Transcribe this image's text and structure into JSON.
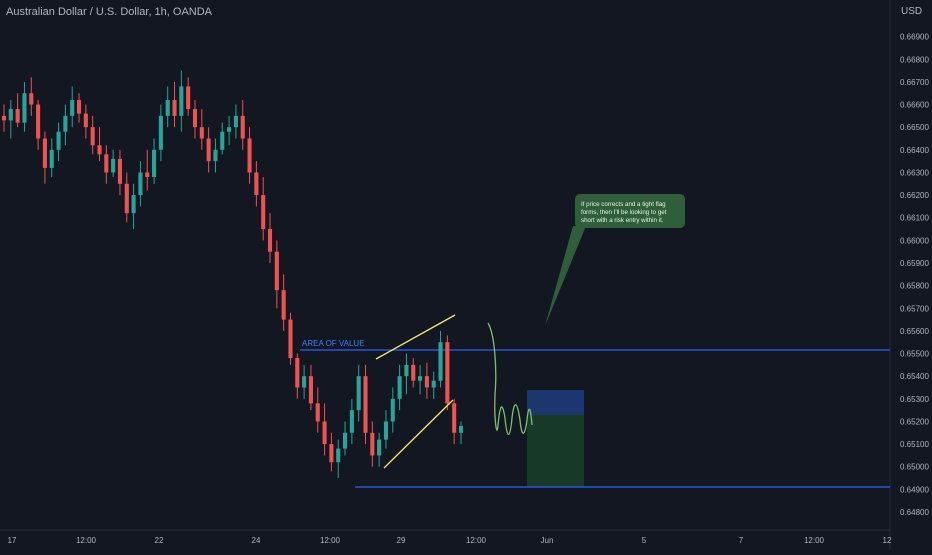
{
  "header": {
    "symbol_title": "Australian Dollar / U.S. Dollar, 1h, OANDA",
    "currency": "USD"
  },
  "colors": {
    "background": "#131722",
    "up_candle": "#26a69a",
    "down_candle": "#ef5350",
    "level_line": "#2962ff",
    "flag_line": "#f5e96c",
    "projection": "#7bc26a",
    "callout_bg": "#2e5e3a",
    "risk_box": "#1e3a78",
    "reward_box": "#173b28",
    "axis_text": "#b2b5be"
  },
  "annotations": {
    "area_of_value_label": "AREA OF VALUE",
    "callout_lines": [
      "If price corrects and a tight flag",
      "forms, then I'll be looking to get",
      "short with a risk entry within it."
    ]
  },
  "chart_data": {
    "type": "candlestick",
    "title": "Australian Dollar / U.S. Dollar, 1h, OANDA",
    "y_unit": "USD",
    "ylim": [
      0.6475,
      0.6692
    ],
    "y_ticks": [
      "0.66900",
      "0.66800",
      "0.66700",
      "0.66600",
      "0.66500",
      "0.66400",
      "0.66300",
      "0.66200",
      "0.66100",
      "0.66000",
      "0.65900",
      "0.65800",
      "0.65700",
      "0.65600",
      "0.65500",
      "0.65400",
      "0.65300",
      "0.65200",
      "0.65100",
      "0.65000",
      "0.64900",
      "0.64800"
    ],
    "x_ticks": [
      "17",
      "12:00",
      "22",
      "24",
      "12:00",
      "29",
      "12:00",
      "Jun",
      "5",
      "7",
      "12:00",
      "12"
    ],
    "grid": false,
    "levels": [
      {
        "label": "AREA OF VALUE",
        "price": 0.65485
      },
      {
        "label": "",
        "price": 0.6491
      }
    ],
    "position_box": {
      "entry": 0.6522,
      "stop": 0.6532,
      "target": 0.6491
    },
    "candles": [
      {
        "o": 0.6655,
        "h": 0.666,
        "l": 0.6648,
        "c": 0.6653
      },
      {
        "o": 0.6653,
        "h": 0.6662,
        "l": 0.6645,
        "c": 0.6658
      },
      {
        "o": 0.6658,
        "h": 0.6665,
        "l": 0.665,
        "c": 0.6652
      },
      {
        "o": 0.6652,
        "h": 0.667,
        "l": 0.6648,
        "c": 0.6665
      },
      {
        "o": 0.6665,
        "h": 0.6672,
        "l": 0.6655,
        "c": 0.666
      },
      {
        "o": 0.666,
        "h": 0.6662,
        "l": 0.664,
        "c": 0.6645
      },
      {
        "o": 0.6645,
        "h": 0.6648,
        "l": 0.6625,
        "c": 0.6632
      },
      {
        "o": 0.6632,
        "h": 0.6645,
        "l": 0.6628,
        "c": 0.664
      },
      {
        "o": 0.664,
        "h": 0.6652,
        "l": 0.6635,
        "c": 0.6648
      },
      {
        "o": 0.6648,
        "h": 0.666,
        "l": 0.6642,
        "c": 0.6655
      },
      {
        "o": 0.6655,
        "h": 0.6668,
        "l": 0.665,
        "c": 0.6662
      },
      {
        "o": 0.6662,
        "h": 0.6665,
        "l": 0.6652,
        "c": 0.6656
      },
      {
        "o": 0.6656,
        "h": 0.666,
        "l": 0.6645,
        "c": 0.665
      },
      {
        "o": 0.665,
        "h": 0.6655,
        "l": 0.6638,
        "c": 0.6642
      },
      {
        "o": 0.6642,
        "h": 0.665,
        "l": 0.6635,
        "c": 0.6638
      },
      {
        "o": 0.6638,
        "h": 0.6642,
        "l": 0.6625,
        "c": 0.663
      },
      {
        "o": 0.663,
        "h": 0.664,
        "l": 0.6628,
        "c": 0.6636
      },
      {
        "o": 0.6636,
        "h": 0.664,
        "l": 0.662,
        "c": 0.6625
      },
      {
        "o": 0.6625,
        "h": 0.663,
        "l": 0.6608,
        "c": 0.6612
      },
      {
        "o": 0.6612,
        "h": 0.6625,
        "l": 0.6605,
        "c": 0.662
      },
      {
        "o": 0.662,
        "h": 0.6635,
        "l": 0.6615,
        "c": 0.663
      },
      {
        "o": 0.663,
        "h": 0.664,
        "l": 0.6622,
        "c": 0.6628
      },
      {
        "o": 0.6628,
        "h": 0.6645,
        "l": 0.6625,
        "c": 0.664
      },
      {
        "o": 0.664,
        "h": 0.666,
        "l": 0.6635,
        "c": 0.6655
      },
      {
        "o": 0.6655,
        "h": 0.6668,
        "l": 0.665,
        "c": 0.6662
      },
      {
        "o": 0.6662,
        "h": 0.667,
        "l": 0.665,
        "c": 0.6655
      },
      {
        "o": 0.6655,
        "h": 0.6675,
        "l": 0.6648,
        "c": 0.6668
      },
      {
        "o": 0.6668,
        "h": 0.6672,
        "l": 0.6655,
        "c": 0.6658
      },
      {
        "o": 0.6658,
        "h": 0.6662,
        "l": 0.6645,
        "c": 0.665
      },
      {
        "o": 0.665,
        "h": 0.6658,
        "l": 0.664,
        "c": 0.6645
      },
      {
        "o": 0.6645,
        "h": 0.665,
        "l": 0.663,
        "c": 0.6635
      },
      {
        "o": 0.6635,
        "h": 0.6645,
        "l": 0.663,
        "c": 0.664
      },
      {
        "o": 0.664,
        "h": 0.6652,
        "l": 0.6638,
        "c": 0.6648
      },
      {
        "o": 0.6648,
        "h": 0.6655,
        "l": 0.6642,
        "c": 0.665
      },
      {
        "o": 0.665,
        "h": 0.666,
        "l": 0.6645,
        "c": 0.6655
      },
      {
        "o": 0.6655,
        "h": 0.6662,
        "l": 0.664,
        "c": 0.6645
      },
      {
        "o": 0.6645,
        "h": 0.665,
        "l": 0.6625,
        "c": 0.663
      },
      {
        "o": 0.663,
        "h": 0.6635,
        "l": 0.6615,
        "c": 0.662
      },
      {
        "o": 0.662,
        "h": 0.6628,
        "l": 0.66,
        "c": 0.6605
      },
      {
        "o": 0.6605,
        "h": 0.6612,
        "l": 0.659,
        "c": 0.6595
      },
      {
        "o": 0.6595,
        "h": 0.66,
        "l": 0.657,
        "c": 0.6578
      },
      {
        "o": 0.6578,
        "h": 0.6585,
        "l": 0.656,
        "c": 0.6565
      },
      {
        "o": 0.6565,
        "h": 0.6568,
        "l": 0.6545,
        "c": 0.6548
      },
      {
        "o": 0.6548,
        "h": 0.655,
        "l": 0.653,
        "c": 0.6535
      },
      {
        "o": 0.6535,
        "h": 0.6545,
        "l": 0.653,
        "c": 0.654
      },
      {
        "o": 0.654,
        "h": 0.6545,
        "l": 0.6525,
        "c": 0.6528
      },
      {
        "o": 0.6528,
        "h": 0.6535,
        "l": 0.6515,
        "c": 0.652
      },
      {
        "o": 0.652,
        "h": 0.6528,
        "l": 0.6505,
        "c": 0.651
      },
      {
        "o": 0.651,
        "h": 0.6515,
        "l": 0.6498,
        "c": 0.6502
      },
      {
        "o": 0.6502,
        "h": 0.6512,
        "l": 0.6495,
        "c": 0.6508
      },
      {
        "o": 0.6508,
        "h": 0.652,
        "l": 0.6505,
        "c": 0.6515
      },
      {
        "o": 0.6515,
        "h": 0.653,
        "l": 0.651,
        "c": 0.6525
      },
      {
        "o": 0.6525,
        "h": 0.6545,
        "l": 0.652,
        "c": 0.654
      },
      {
        "o": 0.654,
        "h": 0.6545,
        "l": 0.651,
        "c": 0.6515
      },
      {
        "o": 0.6515,
        "h": 0.652,
        "l": 0.65,
        "c": 0.6505
      },
      {
        "o": 0.6505,
        "h": 0.6515,
        "l": 0.65,
        "c": 0.6512
      },
      {
        "o": 0.6512,
        "h": 0.6525,
        "l": 0.6508,
        "c": 0.652
      },
      {
        "o": 0.652,
        "h": 0.6535,
        "l": 0.6515,
        "c": 0.653
      },
      {
        "o": 0.653,
        "h": 0.6545,
        "l": 0.6525,
        "c": 0.654
      },
      {
        "o": 0.654,
        "h": 0.655,
        "l": 0.6532,
        "c": 0.6545
      },
      {
        "o": 0.6545,
        "h": 0.6548,
        "l": 0.6535,
        "c": 0.6538
      },
      {
        "o": 0.6538,
        "h": 0.6545,
        "l": 0.6532,
        "c": 0.654
      },
      {
        "o": 0.654,
        "h": 0.6546,
        "l": 0.653,
        "c": 0.6535
      },
      {
        "o": 0.6535,
        "h": 0.6542,
        "l": 0.653,
        "c": 0.6538
      },
      {
        "o": 0.6538,
        "h": 0.656,
        "l": 0.6535,
        "c": 0.6555
      },
      {
        "o": 0.6555,
        "h": 0.6558,
        "l": 0.6525,
        "c": 0.6528
      },
      {
        "o": 0.6528,
        "h": 0.653,
        "l": 0.651,
        "c": 0.6515
      },
      {
        "o": 0.6515,
        "h": 0.652,
        "l": 0.651,
        "c": 0.6518
      }
    ]
  }
}
